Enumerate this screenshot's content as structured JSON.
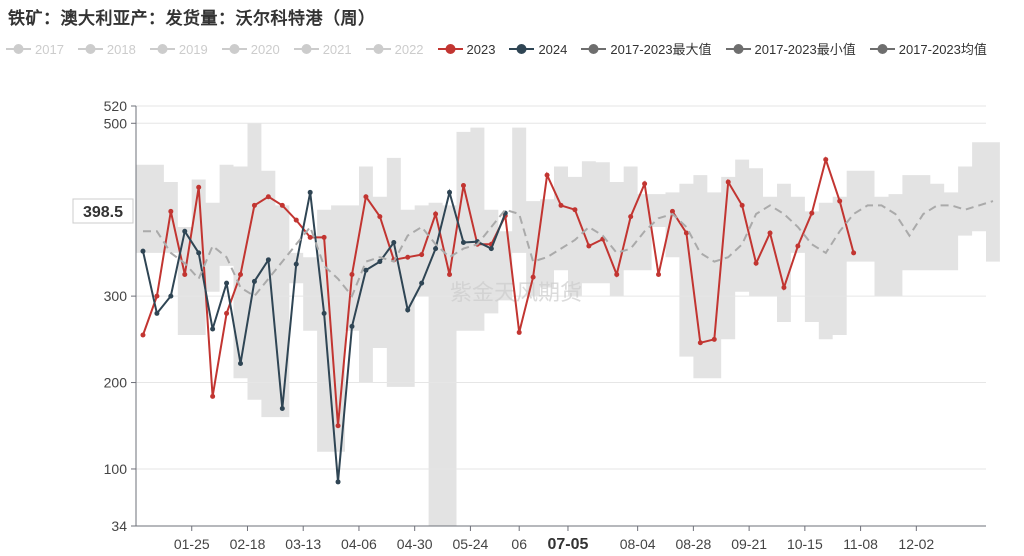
{
  "title": "铁矿：澳大利亚产：发货量：沃尔科特港（周）",
  "legend": [
    {
      "label": "2017",
      "color": "#cccccc",
      "active": false
    },
    {
      "label": "2018",
      "color": "#cccccc",
      "active": false
    },
    {
      "label": "2019",
      "color": "#cccccc",
      "active": false
    },
    {
      "label": "2020",
      "color": "#cccccc",
      "active": false
    },
    {
      "label": "2021",
      "color": "#cccccc",
      "active": false
    },
    {
      "label": "2022",
      "color": "#cccccc",
      "active": false
    },
    {
      "label": "2023",
      "color": "#c23531",
      "active": true
    },
    {
      "label": "2024",
      "color": "#2f4554",
      "active": true
    },
    {
      "label": "2017-2023最大值",
      "color": "#6e6e6e",
      "active": true
    },
    {
      "label": "2017-2023最小值",
      "color": "#6e6e6e",
      "active": true
    },
    {
      "label": "2017-2023均值",
      "color": "#6e6e6e",
      "active": true
    }
  ],
  "watermark": "紫金天风期货",
  "chart_data": {
    "type": "line",
    "x_ticks": [
      {
        "week": 4,
        "label": "01-25"
      },
      {
        "week": 8,
        "label": "02-18"
      },
      {
        "week": 12,
        "label": "03-13"
      },
      {
        "week": 16,
        "label": "04-06"
      },
      {
        "week": 20,
        "label": "04-30"
      },
      {
        "week": 24,
        "label": "05-24"
      },
      {
        "week": 27.5,
        "label": "06"
      },
      {
        "week": 31,
        "label": "07-05",
        "highlight": true
      },
      {
        "week": 36,
        "label": "08-04"
      },
      {
        "week": 40,
        "label": "08-28"
      },
      {
        "week": 44,
        "label": "09-21"
      },
      {
        "week": 48,
        "label": "10-15"
      },
      {
        "week": 52,
        "label": "11-08"
      },
      {
        "week": 56,
        "label": "12-02"
      }
    ],
    "y_ticks": [
      34,
      100,
      200,
      300,
      500,
      520
    ],
    "y_pointer": {
      "value": 398.5,
      "label": "398.5"
    },
    "ylim": [
      34,
      520
    ],
    "xlim": [
      0,
      61
    ],
    "grid": true,
    "series": [
      {
        "name": "2023",
        "color": "#c23531",
        "values": [
          255,
          300,
          398,
          325,
          426,
          184,
          280,
          325,
          405,
          415,
          405,
          388,
          368,
          368,
          150,
          325,
          415,
          392,
          342,
          345,
          348,
          395,
          325,
          428,
          360,
          360,
          393,
          258,
          322,
          440,
          405,
          400,
          358,
          366,
          325,
          392,
          430,
          325,
          398,
          373,
          246,
          250,
          432,
          405,
          338,
          373,
          310,
          358,
          396,
          458,
          410,
          350
        ]
      },
      {
        "name": "2024",
        "color": "#2f4554",
        "values": [
          352,
          280,
          300,
          375,
          350,
          262,
          315,
          222,
          317,
          342,
          170,
          337,
          420,
          280,
          85,
          265,
          330,
          340,
          362,
          284,
          315,
          355,
          420,
          362,
          363,
          355,
          396
        ]
      },
      {
        "name": "2017-2023最大值",
        "color": "#e3e3e3",
        "values": [
          452,
          452,
          432,
          380,
          435,
          408,
          452,
          450,
          500,
          445,
          405,
          350,
          345,
          400,
          405,
          405,
          450,
          415,
          460,
          400,
          405,
          408,
          405,
          490,
          495,
          400,
          375,
          495,
          410,
          412,
          450,
          438,
          456,
          455,
          432,
          450,
          418,
          418,
          420,
          430,
          440,
          420,
          438,
          458,
          448,
          415,
          430,
          415,
          398,
          408,
          415,
          445,
          445,
          415,
          418,
          440,
          440,
          430,
          420,
          450,
          478,
          478
        ]
      },
      {
        "name": "2017-2023最小值",
        "color": "#e3e3e3",
        "values": [
          350,
          350,
          350,
          255,
          255,
          305,
          335,
          205,
          180,
          160,
          160,
          315,
          260,
          120,
          120,
          260,
          200,
          240,
          195,
          195,
          300,
          34,
          34,
          260,
          260,
          280,
          295,
          350,
          300,
          310,
          330,
          300,
          315,
          315,
          300,
          330,
          330,
          380,
          345,
          230,
          205,
          205,
          250,
          305,
          300,
          300,
          270,
          350,
          270,
          250,
          255,
          340,
          340,
          300,
          300,
          330,
          330,
          330,
          330,
          370,
          375,
          340
        ]
      },
      {
        "name": "2017-2023均值",
        "color": "#aaaaaa",
        "values": [
          375,
          375,
          350,
          338,
          320,
          358,
          345,
          310,
          300,
          320,
          340,
          360,
          380,
          335,
          320,
          300,
          340,
          345,
          340,
          370,
          380,
          360,
          345,
          355,
          360,
          380,
          400,
          395,
          340,
          345,
          355,
          365,
          380,
          370,
          350,
          355,
          375,
          390,
          395,
          380,
          350,
          340,
          345,
          360,
          395,
          405,
          395,
          380,
          360,
          350,
          375,
          395,
          405,
          405,
          395,
          370,
          395,
          405,
          405,
          400,
          405,
          410
        ]
      }
    ]
  }
}
